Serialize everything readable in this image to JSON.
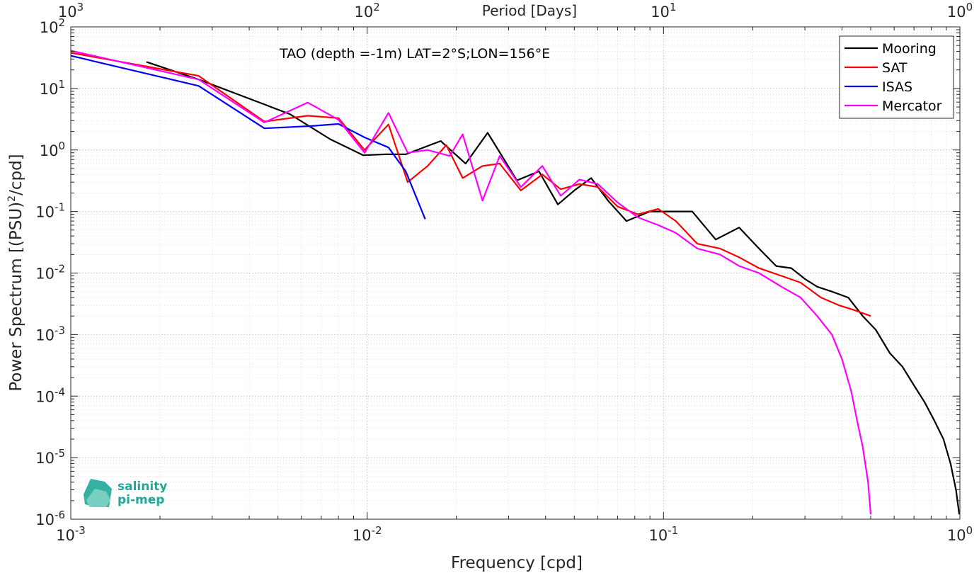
{
  "chart_data": {
    "type": "line",
    "xlabel": "Frequency [cpd]",
    "ylabel": "Power Spectrum [(PSU)",
    "ylabel_sup": "2",
    "ylabel_end": "/cpd]",
    "top_xlabel": "Period [Days]",
    "annotation": "TAO (depth =-1m) LAT=2°S;LON=156°E",
    "xscale": "log",
    "yscale": "log",
    "xlim": [
      0.001,
      1
    ],
    "ylim": [
      1e-06,
      100
    ],
    "grid": true,
    "legend_position": "top-right",
    "x_ticks": [
      {
        "value": 0.001,
        "base": "10",
        "exp": "-3"
      },
      {
        "value": 0.01,
        "base": "10",
        "exp": "-2"
      },
      {
        "value": 0.1,
        "base": "10",
        "exp": "-1"
      },
      {
        "value": 1,
        "base": "10",
        "exp": "0"
      }
    ],
    "top_ticks": [
      {
        "value": 0.001,
        "base": "10",
        "exp": "3"
      },
      {
        "value": 0.01,
        "base": "10",
        "exp": "2"
      },
      {
        "value": 0.1,
        "base": "10",
        "exp": "1"
      },
      {
        "value": 1,
        "base": "10",
        "exp": "0"
      }
    ],
    "y_ticks": [
      {
        "value": 100,
        "base": "10",
        "exp": "2"
      },
      {
        "value": 10,
        "base": "10",
        "exp": "1"
      },
      {
        "value": 1,
        "base": "10",
        "exp": "0"
      },
      {
        "value": 0.1,
        "base": "10",
        "exp": "-1"
      },
      {
        "value": 0.01,
        "base": "10",
        "exp": "-2"
      },
      {
        "value": 0.001,
        "base": "10",
        "exp": "-3"
      },
      {
        "value": 0.0001,
        "base": "10",
        "exp": "-4"
      },
      {
        "value": 1e-05,
        "base": "10",
        "exp": "-5"
      },
      {
        "value": 1e-06,
        "base": "10",
        "exp": "-6"
      }
    ],
    "series": [
      {
        "name": "Mooring",
        "color": "#000000",
        "x": [
          0.0018,
          0.0027,
          0.0045,
          0.0055,
          0.0075,
          0.0097,
          0.0115,
          0.0135,
          0.0177,
          0.0215,
          0.0255,
          0.0285,
          0.032,
          0.038,
          0.044,
          0.05,
          0.057,
          0.065,
          0.075,
          0.09,
          0.105,
          0.125,
          0.15,
          0.18,
          0.21,
          0.24,
          0.27,
          0.3,
          0.33,
          0.37,
          0.42,
          0.47,
          0.52,
          0.58,
          0.64,
          0.7,
          0.76,
          0.82,
          0.88,
          0.93,
          0.97,
          0.995
        ],
        "y": [
          27,
          14,
          5.5,
          3.8,
          1.5,
          0.82,
          0.85,
          0.85,
          1.4,
          0.6,
          1.9,
          0.8,
          0.32,
          0.45,
          0.13,
          0.22,
          0.35,
          0.15,
          0.07,
          0.1,
          0.1,
          0.1,
          0.035,
          0.055,
          0.025,
          0.013,
          0.012,
          0.008,
          0.006,
          0.005,
          0.004,
          0.002,
          0.0012,
          0.0005,
          0.0003,
          0.00015,
          8e-05,
          4e-05,
          2e-05,
          8e-06,
          3e-06,
          1.2e-06
        ]
      },
      {
        "name": "SAT",
        "color": "#ff0000",
        "x": [
          0.001,
          0.0027,
          0.0045,
          0.0063,
          0.008,
          0.0098,
          0.0118,
          0.0137,
          0.016,
          0.0185,
          0.021,
          0.0245,
          0.028,
          0.033,
          0.039,
          0.045,
          0.052,
          0.06,
          0.07,
          0.082,
          0.096,
          0.11,
          0.13,
          0.155,
          0.18,
          0.21,
          0.25,
          0.29,
          0.34,
          0.39,
          0.44,
          0.5
        ],
        "y": [
          38,
          16,
          2.9,
          3.6,
          3.3,
          1.0,
          2.6,
          0.3,
          0.55,
          1.2,
          0.35,
          0.55,
          0.6,
          0.22,
          0.4,
          0.23,
          0.28,
          0.25,
          0.12,
          0.09,
          0.11,
          0.07,
          0.03,
          0.025,
          0.018,
          0.012,
          0.009,
          0.007,
          0.004,
          0.003,
          0.0025,
          0.002
        ]
      },
      {
        "name": "ISAS",
        "color": "#0000ff",
        "x": [
          0.001,
          0.0027,
          0.0045,
          0.0065,
          0.008,
          0.0098,
          0.0118,
          0.0135,
          0.0157
        ],
        "y": [
          34,
          11,
          2.25,
          2.45,
          2.65,
          1.6,
          1.1,
          0.45,
          0.075
        ]
      },
      {
        "name": "Mercator",
        "color": "#ff00ff",
        "x": [
          0.001,
          0.0027,
          0.0045,
          0.0063,
          0.008,
          0.0098,
          0.0118,
          0.0137,
          0.016,
          0.019,
          0.021,
          0.0245,
          0.028,
          0.033,
          0.039,
          0.045,
          0.052,
          0.06,
          0.07,
          0.082,
          0.096,
          0.11,
          0.13,
          0.155,
          0.18,
          0.21,
          0.25,
          0.29,
          0.33,
          0.37,
          0.4,
          0.43,
          0.45,
          0.47,
          0.49,
          0.5
        ],
        "y": [
          41,
          14,
          2.8,
          5.9,
          3.1,
          0.9,
          4.0,
          0.9,
          1.0,
          0.8,
          1.8,
          0.15,
          0.8,
          0.25,
          0.55,
          0.18,
          0.33,
          0.28,
          0.14,
          0.08,
          0.06,
          0.045,
          0.025,
          0.02,
          0.013,
          0.01,
          0.006,
          0.004,
          0.002,
          0.001,
          0.0004,
          0.00012,
          4e-05,
          1.5e-05,
          4e-06,
          1.2e-06
        ]
      }
    ]
  },
  "logo": {
    "line1": "salinity",
    "line2": "pi-mep",
    "color": "#1fa89a"
  }
}
